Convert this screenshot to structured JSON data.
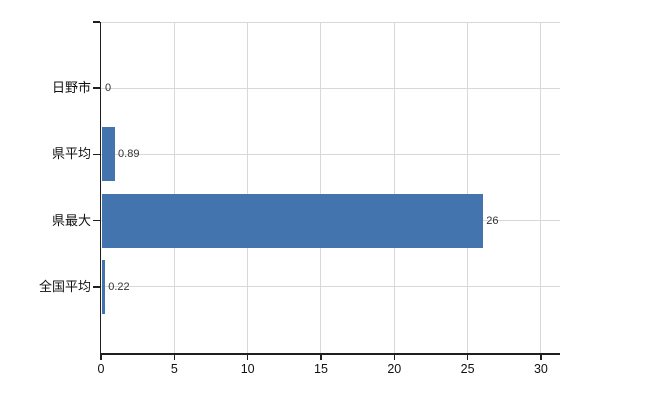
{
  "chart_data": {
    "type": "bar",
    "orientation": "horizontal",
    "title": "",
    "xlabel": "",
    "ylabel": "",
    "categories": [
      "日野市",
      "県平均",
      "県最大",
      "全国平均"
    ],
    "values": [
      0,
      0.89,
      26,
      0.22
    ],
    "value_labels": [
      "0",
      "0.89",
      "26",
      "0.22"
    ],
    "x_ticks": [
      0,
      5,
      10,
      15,
      20,
      25,
      30
    ],
    "x_tick_labels": [
      "0",
      "5",
      "10",
      "15",
      "20",
      "25",
      "30"
    ],
    "xlim": [
      0,
      31.3
    ],
    "grid": true,
    "legend": false,
    "colors": {
      "bar": "#4374ad",
      "grid": "#d8d8d8",
      "axis": "#1f1f1f",
      "category_text": "#111111",
      "tick_text": "#111111",
      "value_text": "#333333",
      "background": "#ffffff"
    }
  }
}
